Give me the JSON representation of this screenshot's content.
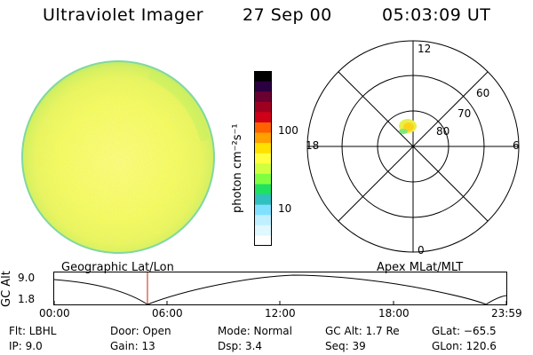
{
  "header": {
    "instrument": "Ultraviolet Imager",
    "date": "27 Sep 00",
    "time": "05:03:09 UT"
  },
  "colorbar": {
    "unit_label": "photon cm⁻²s⁻¹",
    "ticks": [
      "100",
      "10"
    ],
    "colors": [
      "#000000",
      "#2a0040",
      "#6a0030",
      "#a00020",
      "#d00018",
      "#ff6000",
      "#ffa000",
      "#ffe000",
      "#ffff40",
      "#d0ff40",
      "#80ff40",
      "#20e060",
      "#30c0c0",
      "#80e0ff",
      "#c0f0ff",
      "#e0f8ff",
      "#ffffff"
    ]
  },
  "polar_plot": {
    "labels": {
      "top": "12",
      "bottom": "0",
      "left": "18",
      "right": "6",
      "lat_60": "60",
      "lat_70": "70",
      "lat_80": "80"
    }
  },
  "altitude_plot": {
    "ylabel": "GC Alt",
    "yticks": [
      "9.0",
      "1.8"
    ],
    "left_title": "Geographic Lat/Lon",
    "right_title": "Apex  MLat/MLT",
    "xticks": [
      "00:00",
      "06:00",
      "12:00",
      "18:00",
      "23:59"
    ],
    "marker_color": "#cc2200"
  },
  "info": {
    "flt": "Flt: LBHL",
    "ip": "IP:  9.0",
    "door": "Door: Open",
    "gain": "Gain: 13",
    "mode": "Mode: Normal",
    "dsp": "Dsp:     3.4",
    "gcalt": "GC Alt: 1.7 Re",
    "seq": "Seq: 39",
    "glat": "GLat: −65.5",
    "glon": "GLon: 120.6"
  }
}
